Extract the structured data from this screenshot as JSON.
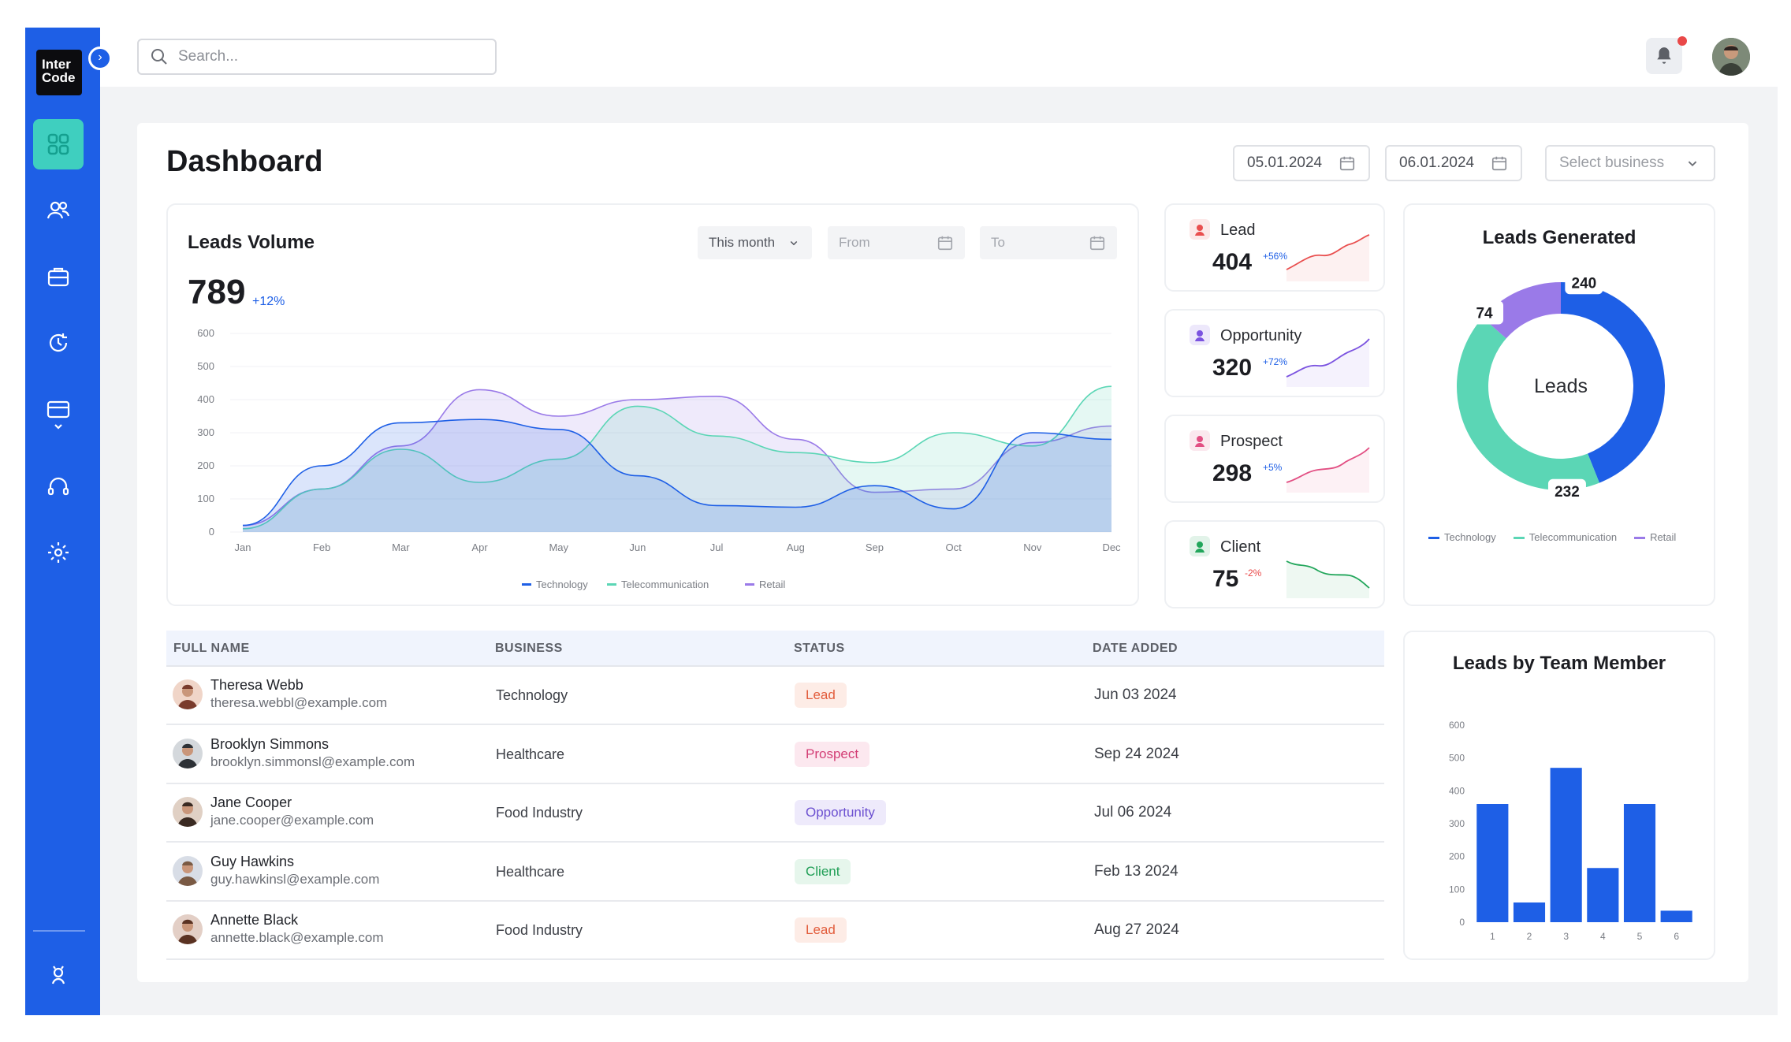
{
  "app": {
    "logo_line1": "Inter",
    "logo_line2": "Code"
  },
  "search": {
    "placeholder": "Search..."
  },
  "page": {
    "title": "Dashboard",
    "date_from": "05.01.2024",
    "date_to": "06.01.2024",
    "business_placeholder": "Select business"
  },
  "leads_volume": {
    "title": "Leads Volume",
    "value": "789",
    "change": "+12%",
    "period": "This month",
    "from_placeholder": "From",
    "to_placeholder": "To"
  },
  "kpis": [
    {
      "label": "Lead",
      "value": "404",
      "change": "+56%",
      "color": "#e94f4f"
    },
    {
      "label": "Opportunity",
      "value": "320",
      "change": "+72%",
      "color": "#7b53e0"
    },
    {
      "label": "Prospect",
      "value": "298",
      "change": "+5%",
      "color": "#e24f83"
    },
    {
      "label": "Client",
      "value": "75",
      "change": "-2%",
      "color": "#22a65b"
    }
  ],
  "table": {
    "headers": [
      "FULL NAME",
      "BUSINESS",
      "STATUS",
      "DATE ADDED"
    ],
    "rows": [
      {
        "name": "Theresa Webb",
        "email": "theresa.webbl@example.com",
        "business": "Technology",
        "status": "Lead",
        "date": "Jun 03 2024"
      },
      {
        "name": "Brooklyn Simmons",
        "email": "brooklyn.simmonsl@example.com",
        "business": "Healthcare",
        "status": "Prospect",
        "date": "Sep 24 2024"
      },
      {
        "name": "Jane Cooper",
        "email": "jane.cooper@example.com",
        "business": "Food Industry",
        "status": "Opportunity",
        "date": "Jul 06 2024"
      },
      {
        "name": "Guy Hawkins",
        "email": "guy.hawkinsl@example.com",
        "business": "Healthcare",
        "status": "Client",
        "date": "Feb 13 2024"
      },
      {
        "name": "Annette Black",
        "email": "annette.black@example.com",
        "business": "Food Industry",
        "status": "Lead",
        "date": "Aug 27 2024"
      }
    ]
  },
  "colors": {
    "primary": "#1e5fe6",
    "teal": "#5bd6b5",
    "purple": "#9a7ae8",
    "sidebar_active": "#3fcfbf"
  },
  "chart_data": [
    {
      "type": "area",
      "title": "Leads Volume",
      "categories": [
        "Jan",
        "Feb",
        "Mar",
        "Apr",
        "May",
        "Jun",
        "Jul",
        "Aug",
        "Sep",
        "Oct",
        "Nov",
        "Dec"
      ],
      "ylim": [
        0,
        600
      ],
      "yticks": [
        "0",
        "100",
        "200",
        "300",
        "400",
        "500",
        "600"
      ],
      "series": [
        {
          "name": "Technology",
          "values": [
            20,
            200,
            330,
            340,
            310,
            170,
            80,
            75,
            140,
            70,
            300,
            280
          ]
        },
        {
          "name": "Telecommunication",
          "values": [
            10,
            130,
            250,
            150,
            220,
            380,
            290,
            240,
            210,
            300,
            260,
            440
          ]
        },
        {
          "name": "Retail",
          "values": [
            20,
            130,
            260,
            430,
            350,
            400,
            410,
            280,
            120,
            130,
            270,
            320
          ]
        }
      ],
      "legend": "bottom"
    },
    {
      "type": "pie",
      "title": "Leads Generated",
      "center_label": "Leads",
      "series": [
        {
          "name": "Technology",
          "value": 240
        },
        {
          "name": "Telecommunication",
          "value": 232
        },
        {
          "name": "Retail",
          "value": 74
        }
      ],
      "legend": "bottom"
    },
    {
      "type": "bar",
      "title": "Leads by Team Member",
      "categories": [
        "1",
        "2",
        "3",
        "4",
        "5",
        "6"
      ],
      "values": [
        360,
        60,
        470,
        165,
        360,
        35
      ],
      "ylim": [
        0,
        600
      ],
      "yticks": [
        "0",
        "100",
        "200",
        "300",
        "400",
        "500",
        "600"
      ]
    }
  ]
}
